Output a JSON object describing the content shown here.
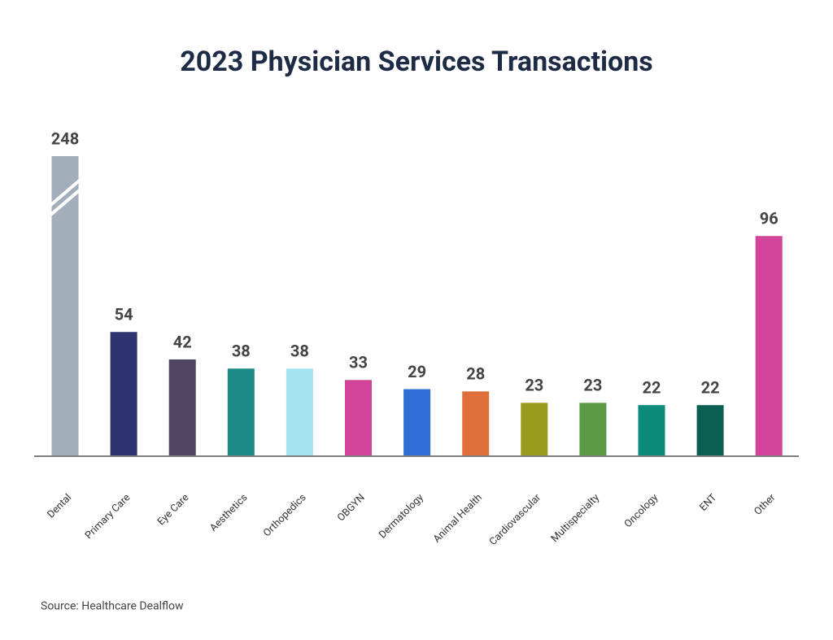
{
  "chart_data": {
    "type": "bar",
    "title": "2023 Physician Services Transactions",
    "categories": [
      "Dental",
      "Primary Care",
      "Eye Care",
      "Aesthetics",
      "Orthopedics",
      "OBGYN",
      "Dermatology",
      "Animal Health",
      "Cardiovascular",
      "Multispecialty",
      "Oncology",
      "ENT",
      "Other"
    ],
    "values": [
      248,
      54,
      42,
      38,
      38,
      33,
      29,
      28,
      23,
      23,
      22,
      22,
      96
    ],
    "colors": [
      "#a3aebb",
      "#2e3470",
      "#4f4563",
      "#1e8a85",
      "#a3e4ee",
      "#d2449a",
      "#2f6fd6",
      "#e0703b",
      "#9a9a1e",
      "#5a9a45",
      "#0d8a7a",
      "#0b5e52",
      "#d2449a"
    ],
    "source": "Source: Healthcare Dealflow"
  }
}
